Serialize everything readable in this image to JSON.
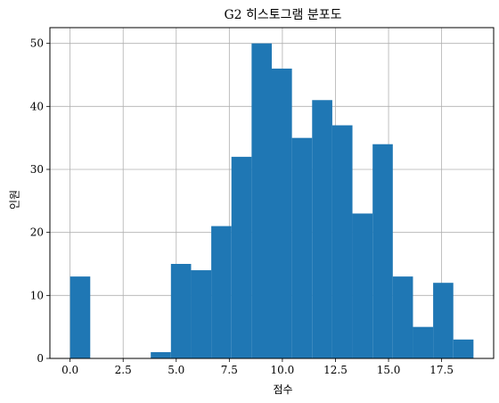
{
  "chart_data": {
    "type": "bar",
    "title": "G2 히스토그램 분포도",
    "xlabel": "점수",
    "ylabel": "인원",
    "xlim": [
      -0.95,
      19.95
    ],
    "ylim": [
      0,
      52.5
    ],
    "xticks": [
      0.0,
      2.5,
      5.0,
      7.5,
      10.0,
      12.5,
      15.0,
      17.5
    ],
    "xtick_labels": [
      "0.0",
      "2.5",
      "5.0",
      "7.5",
      "10.0",
      "12.5",
      "15.0",
      "17.5"
    ],
    "yticks": [
      0,
      10,
      20,
      30,
      40,
      50
    ],
    "ytick_labels": [
      "0",
      "10",
      "20",
      "30",
      "40",
      "50"
    ],
    "grid": true,
    "bar_color": "#1f77b4",
    "bin_edges": [
      0,
      0.95,
      1.9,
      2.85,
      3.8,
      4.75,
      5.7,
      6.65,
      7.6,
      8.55,
      9.5,
      10.45,
      11.4,
      12.35,
      13.3,
      14.25,
      15.2,
      16.15,
      17.1,
      18.05,
      19.0
    ],
    "counts": [
      13,
      0,
      0,
      0,
      1,
      15,
      14,
      21,
      32,
      50,
      46,
      35,
      41,
      37,
      23,
      34,
      13,
      5,
      12,
      3
    ]
  }
}
